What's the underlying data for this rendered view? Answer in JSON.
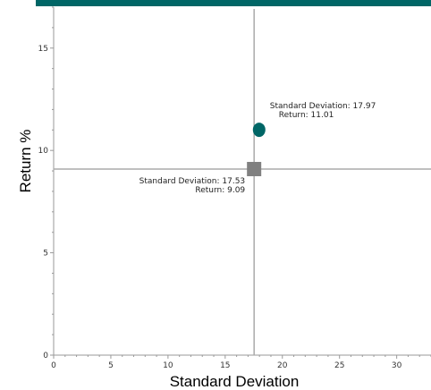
{
  "chart_data": {
    "type": "scatter",
    "title": "",
    "xlabel": "Standard Deviation",
    "ylabel": "Return %",
    "xlim": [
      0,
      33
    ],
    "ylim": [
      0,
      17
    ],
    "x_ticks": [
      0,
      5,
      10,
      15,
      20,
      25,
      30
    ],
    "y_ticks": [
      0,
      5,
      10,
      15
    ],
    "grid": false,
    "reference_lines": {
      "x": 17.53,
      "y": 9.09
    },
    "points": [
      {
        "x": 17.97,
        "y": 11.01,
        "shape": "circle",
        "color": "#006666",
        "label_line1": "Standard Deviation: 17.97",
        "label_line2": "Return: 11.01",
        "label_side": "right"
      },
      {
        "x": 17.53,
        "y": 9.09,
        "shape": "square",
        "color": "#808080",
        "label_line1": "Standard Deviation: 17.53",
        "label_line2": "Return: 9.09",
        "label_side": "left"
      }
    ]
  },
  "colors": {
    "top_bar": "#006666",
    "axis": "#999999",
    "reference_line": "#aaaaaa"
  }
}
